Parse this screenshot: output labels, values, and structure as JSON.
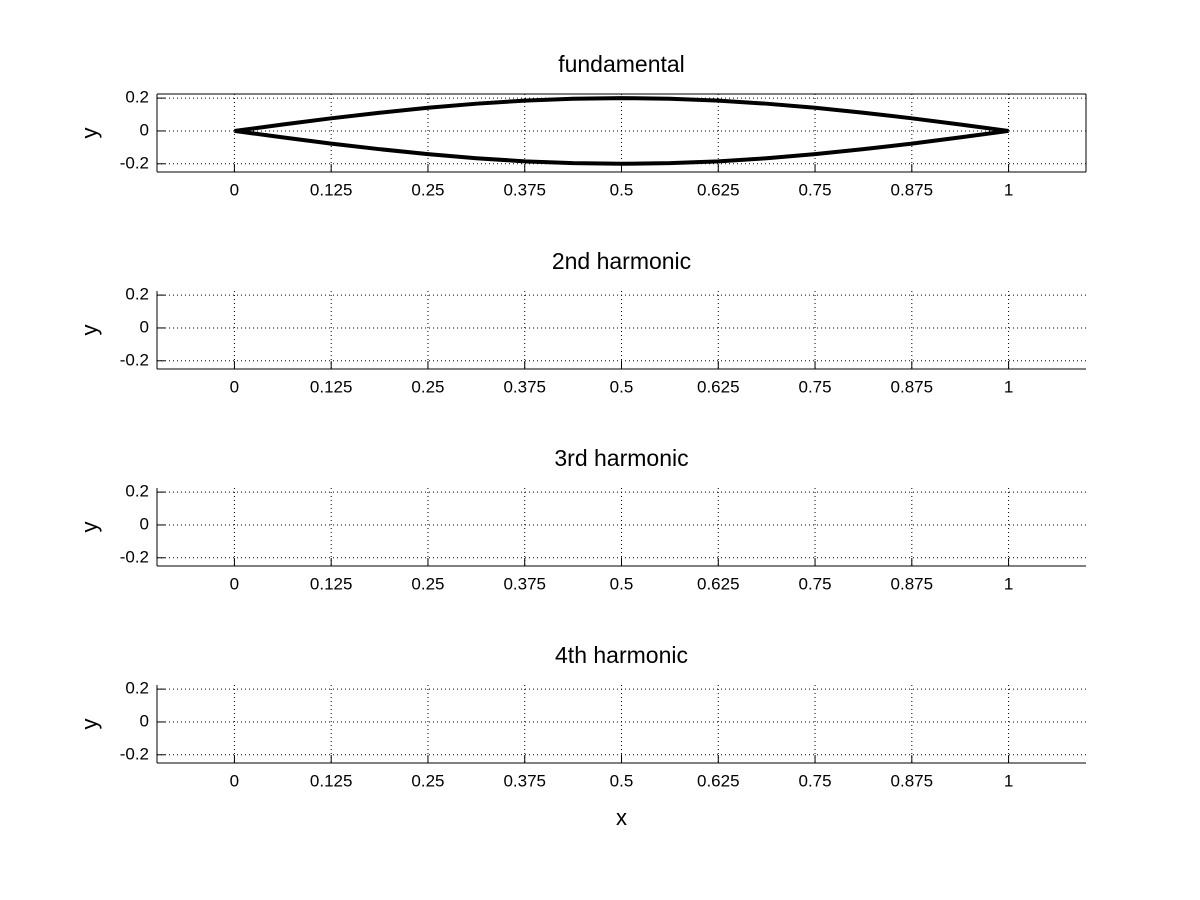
{
  "chart_data": [
    {
      "type": "line",
      "title": "fundamental",
      "ylabel": "y",
      "x": [
        0,
        0.0625,
        0.125,
        0.1875,
        0.25,
        0.3125,
        0.375,
        0.4375,
        0.5,
        0.5625,
        0.625,
        0.6875,
        0.75,
        0.8125,
        0.875,
        0.9375,
        1
      ],
      "series": [
        {
          "color": "#000000",
          "values": [
            0,
            0.039,
            0.077,
            0.111,
            0.141,
            0.166,
            0.185,
            0.196,
            0.2,
            0.196,
            0.185,
            0.166,
            0.141,
            0.111,
            0.077,
            0.039,
            0
          ]
        },
        {
          "color": "#000000",
          "values": [
            0,
            -0.039,
            -0.077,
            -0.111,
            -0.141,
            -0.166,
            -0.185,
            -0.196,
            -0.2,
            -0.196,
            -0.185,
            -0.166,
            -0.141,
            -0.111,
            -0.077,
            -0.039,
            0
          ]
        }
      ],
      "xlim": [
        -0.1,
        1.1
      ],
      "ylim": [
        -0.25,
        0.225
      ],
      "xticks": [
        0,
        0.125,
        0.25,
        0.375,
        0.5,
        0.625,
        0.75,
        0.875,
        1
      ],
      "yticks": [
        -0.2,
        0,
        0.2
      ],
      "grid": true,
      "box": true
    },
    {
      "type": "line",
      "title": "2nd harmonic",
      "ylabel": "y",
      "series": [],
      "xlim": [
        -0.1,
        1.1
      ],
      "ylim": [
        -0.25,
        0.225
      ],
      "xticks": [
        0,
        0.125,
        0.25,
        0.375,
        0.5,
        0.625,
        0.75,
        0.875,
        1
      ],
      "yticks": [
        -0.2,
        0,
        0.2
      ],
      "grid": true,
      "box": false
    },
    {
      "type": "line",
      "title": "3rd harmonic",
      "ylabel": "y",
      "series": [],
      "xlim": [
        -0.1,
        1.1
      ],
      "ylim": [
        -0.25,
        0.225
      ],
      "xticks": [
        0,
        0.125,
        0.25,
        0.375,
        0.5,
        0.625,
        0.75,
        0.875,
        1
      ],
      "yticks": [
        -0.2,
        0,
        0.2
      ],
      "grid": true,
      "box": false
    },
    {
      "type": "line",
      "title": "4th harmonic",
      "ylabel": "y",
      "xlabel": "x",
      "series": [],
      "xlim": [
        -0.1,
        1.1
      ],
      "ylim": [
        -0.25,
        0.225
      ],
      "xticks": [
        0,
        0.125,
        0.25,
        0.375,
        0.5,
        0.625,
        0.75,
        0.875,
        1
      ],
      "yticks": [
        -0.2,
        0,
        0.2
      ],
      "grid": true,
      "box": false
    }
  ]
}
